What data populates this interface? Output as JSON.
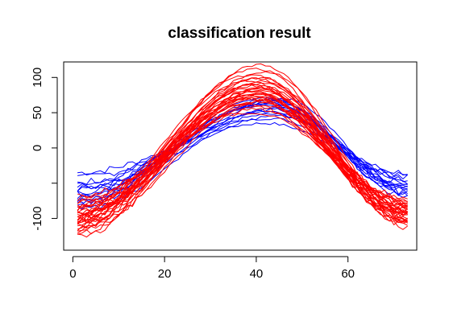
{
  "chart_data": {
    "type": "line",
    "title": "classification result",
    "xlabel": "",
    "ylabel": "",
    "xlim": [
      -2,
      75
    ],
    "ylim": [
      -145,
      122
    ],
    "x_ticks": [
      0,
      20,
      40,
      60
    ],
    "y_ticks": [
      -100,
      -50,
      0,
      50,
      100
    ],
    "y_tick_labels": [
      "-100",
      "",
      "0",
      "50",
      "100"
    ],
    "x_range": [
      1,
      73
    ],
    "grid": false,
    "legend": "none",
    "groups": [
      {
        "color": "#0000ff",
        "count": 15,
        "description_values": {
          "start_y": [
            -35,
            -42,
            -48,
            -55,
            -60,
            -66,
            -72,
            -78,
            -82,
            -88,
            -50,
            -64,
            -70,
            -58,
            -76
          ],
          "peak_x": [
            42,
            43,
            44,
            45,
            41,
            43,
            44,
            46,
            42,
            45,
            43,
            44,
            42,
            45,
            43
          ],
          "peak_y": [
            35,
            42,
            48,
            55,
            60,
            64,
            68,
            70,
            72,
            58,
            52,
            66,
            62,
            45,
            69
          ],
          "end_y": [
            -35,
            -40,
            -45,
            -48,
            -52,
            -55,
            -58,
            -62,
            -65,
            -68,
            -50,
            -60,
            -42,
            -56,
            -63
          ]
        }
      },
      {
        "color": "#ff0000",
        "count": 32,
        "description_values": {
          "start_y": [
            -68,
            -72,
            -78,
            -82,
            -85,
            -88,
            -92,
            -95,
            -98,
            -100,
            -103,
            -106,
            -110,
            -112,
            -115,
            -120,
            -125,
            -80,
            -90,
            -96,
            -102,
            -108,
            -86,
            -94,
            -100,
            -104,
            -76,
            -99,
            -113,
            -118,
            -91,
            -84
          ],
          "peak_x": [
            39,
            40,
            41,
            38,
            40,
            42,
            39,
            41,
            40,
            38,
            42,
            40,
            39,
            41,
            40,
            42,
            39,
            40,
            41,
            38,
            40,
            41,
            39,
            42,
            40,
            41,
            39,
            40,
            38,
            41,
            40,
            42
          ],
          "peak_y": [
            50,
            55,
            60,
            62,
            65,
            68,
            70,
            72,
            74,
            75,
            77,
            78,
            80,
            82,
            84,
            86,
            88,
            90,
            92,
            95,
            98,
            100,
            104,
            108,
            112,
            118,
            70,
            76,
            82,
            66,
            86,
            94
          ],
          "end_y": [
            -70,
            -75,
            -78,
            -80,
            -82,
            -85,
            -88,
            -90,
            -92,
            -95,
            -98,
            -100,
            -102,
            -105,
            -108,
            -112,
            -78,
            -86,
            -94,
            -84,
            -96,
            -104,
            -80,
            -90,
            -99,
            -110,
            -74,
            -88,
            -93,
            -101,
            -83,
            -91
          ]
        }
      }
    ]
  }
}
